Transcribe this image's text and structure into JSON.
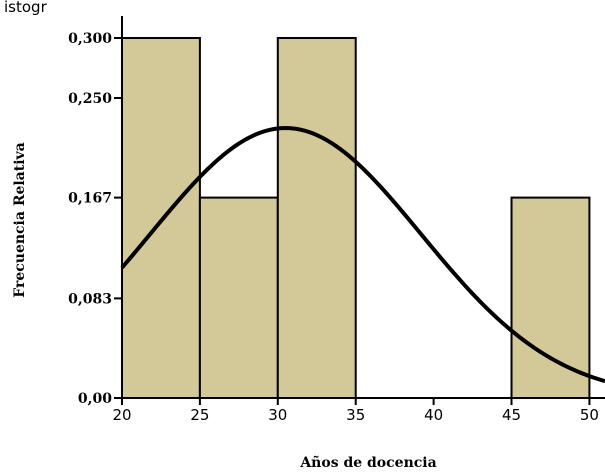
{
  "chart_data": {
    "type": "bar",
    "title": "istogr",
    "xlabel": "Años de docencia",
    "ylabel": "Frecuencia Relativa",
    "bins": [
      {
        "from": 20,
        "to": 25,
        "value": 0.3
      },
      {
        "from": 25,
        "to": 30,
        "value": 0.167
      },
      {
        "from": 30,
        "to": 35,
        "value": 0.3
      },
      {
        "from": 35,
        "to": 40,
        "value": 0.0
      },
      {
        "from": 40,
        "to": 45,
        "value": 0.0
      },
      {
        "from": 45,
        "to": 50,
        "value": 0.167
      }
    ],
    "xlim": [
      20,
      51
    ],
    "ylim": [
      0,
      0.3
    ],
    "xticks": [
      20,
      25,
      30,
      35,
      40,
      45,
      50
    ],
    "xtick_labels": [
      "20",
      "25",
      "30",
      "35",
      "40",
      "45",
      "50"
    ],
    "yticks": [
      0,
      0.083,
      0.167,
      0.25,
      0.3
    ],
    "ytick_labels": [
      "0,00",
      "0,083",
      "0,167",
      "0,250",
      "0,300"
    ],
    "normal_curve": {
      "mean": 30.5,
      "sd": 8.7,
      "peak": 0.225
    },
    "colors": {
      "bar_fill": "#d3c898",
      "bar_edge": "#000000",
      "curve": "#000000"
    },
    "grid": false,
    "legend": "none"
  }
}
